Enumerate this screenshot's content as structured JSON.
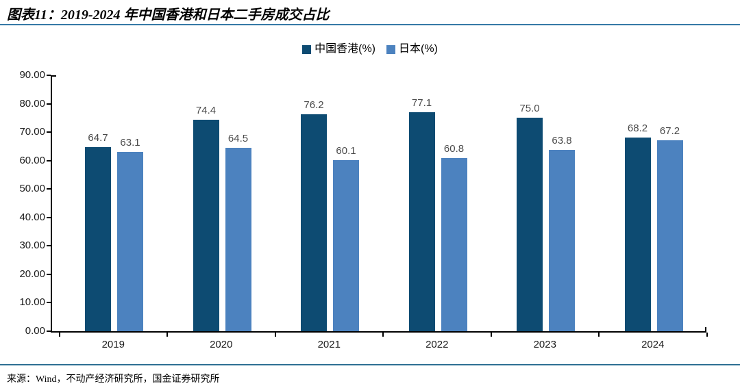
{
  "figure": {
    "title": "图表11：2019-2024 年中国香港和日本二手房成交占比",
    "source": "来源：Wind，不动产经济研究所，国金证券研究所"
  },
  "colors": {
    "series_hk": "#0D4B72",
    "series_jp": "#4C82BF",
    "title_rule": "#3579A6",
    "source_rule": "#2E7093",
    "axis_line": "#000000",
    "axis_label": "#1A1A1A",
    "value_label": "#4A4A4A"
  },
  "chart_data": {
    "type": "bar",
    "title": "2019-2024 年中国香港和日本二手房成交占比",
    "categories": [
      "2019",
      "2020",
      "2021",
      "2022",
      "2023",
      "2024"
    ],
    "series": [
      {
        "name": "中国香港(%)",
        "color": "#0D4B72",
        "values": [
          64.7,
          74.4,
          76.2,
          77.1,
          75.0,
          68.2
        ]
      },
      {
        "name": "日本(%)",
        "color": "#4C82BF",
        "values": [
          63.1,
          64.5,
          60.1,
          60.8,
          63.8,
          67.2
        ]
      }
    ],
    "xlabel": "",
    "ylabel": "",
    "ylim": [
      0,
      90
    ],
    "ytick_step": 10,
    "ytick_decimals": 2,
    "value_label_decimals": 1,
    "grid": false,
    "legend_position": "top-center",
    "value_labels": true
  }
}
